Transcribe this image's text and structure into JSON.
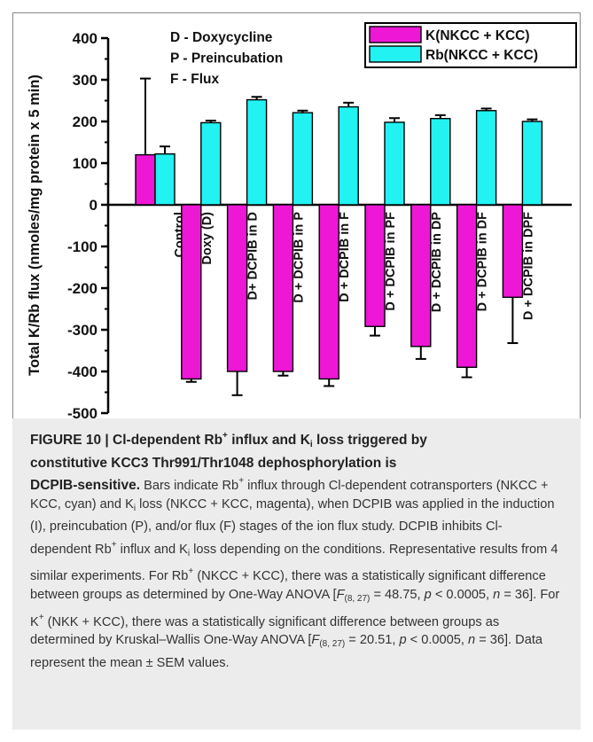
{
  "chart_data": {
    "type": "bar",
    "ylabel": "Total K/Rb flux (nmoles/mg protein x 5 min)",
    "ylim": [
      -500,
      400
    ],
    "yticks": [
      -500,
      -400,
      -300,
      -200,
      -100,
      0,
      100,
      200,
      300,
      400
    ],
    "categories": [
      "Control",
      "Doxy (D)",
      "D+ DCPIB in D",
      "D + DCPIB in P",
      "D + DCPIB in F",
      "D + DCPIB in PF",
      "D + DCPIB in DP",
      "D + DCPIB in DF",
      "D + DCPIB in DPF"
    ],
    "series": [
      {
        "name": "K(NKCC + KCC)",
        "color": "#ee17d6",
        "values": [
          120,
          -418,
          -400,
          -400,
          -418,
          -292,
          -340,
          -390,
          -222
        ],
        "errors": [
          183,
          7,
          57,
          10,
          17,
          22,
          30,
          24,
          110
        ]
      },
      {
        "name": "Rb(NKCC + KCC)",
        "color": "#22f2f2",
        "values": [
          122,
          197,
          252,
          221,
          235,
          198,
          207,
          226,
          200
        ],
        "errors": [
          18,
          5,
          7,
          5,
          10,
          10,
          8,
          5,
          5
        ]
      }
    ],
    "annotations": [
      "D - Doxycycline",
      "P - Preincubation",
      "F - Flux"
    ],
    "legend_position": "top-right"
  },
  "caption": {
    "figure_label": "FIGURE 10 | Cl-dependent Rb",
    "title_l1_pre": "FIGURE 10 | Cl-dependent Rb",
    "sup_plus": "+",
    "title_l1_mid": " influx and K",
    "sub_i": "i",
    "title_l1_post": " loss triggered by",
    "title_l2": "constitutive KCC3 Thr991/Thr1048 dephosphorylation is",
    "title_l3": "DCPIB-sensitive.",
    "b1": " Bars indicate Rb",
    "b2": " influx through Cl-dependent cotransporters (NKCC + KCC, cyan) and K",
    "b3": " loss (NKCC + KCC, magenta), when DCPIB was applied in the induction (I), preincubation (P), and/or flux (F) stages of the ion flux study. DCPIB inhibits Cl-dependent Rb",
    "b4": " influx and K",
    "b5": " loss depending on the conditions. Representative results from 4 similar experiments. For Rb",
    "b6": " (NKCC + KCC), there was a statistically significant difference between groups as determined by One-Way ANOVA [",
    "F": "F",
    "df": "(8, 27)",
    "b7": " = 48.75, ",
    "p": "p",
    "b8": " < 0.0005, ",
    "n": "n",
    "b9": " = 36]. For K",
    "b10": " (NKK + KCC), there was a statistically significant difference between groups as determined by Kruskal–Wallis One-Way ANOVA [",
    "b11": " = 20.51, ",
    "b12": " < 0.0005, ",
    "b13": " = 36]. Data represent the mean ± SEM values."
  }
}
